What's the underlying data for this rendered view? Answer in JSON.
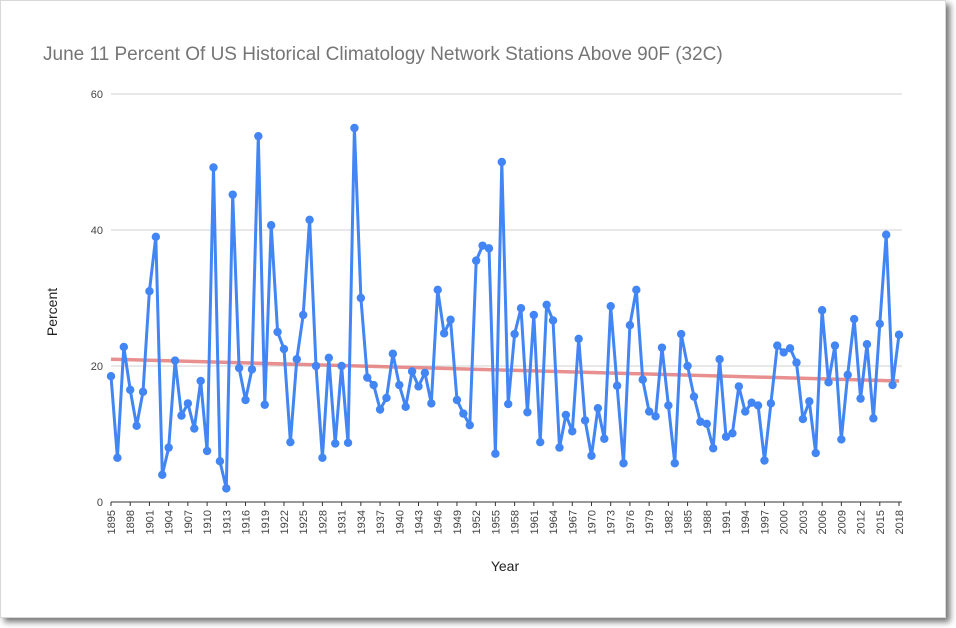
{
  "chart_data": {
    "type": "line",
    "title": "June 11 Percent Of US Historical Climatology Network Stations Above 90F (32C)",
    "xlabel": "Year",
    "ylabel": "Percent",
    "ylim": [
      0,
      60
    ],
    "yticks": [
      0,
      20,
      40,
      60
    ],
    "grid": true,
    "legend": "none",
    "x_tick_labels": [
      "1895",
      "1898",
      "1901",
      "1904",
      "1907",
      "1910",
      "1913",
      "1916",
      "1919",
      "1922",
      "1925",
      "1928",
      "1931",
      "1934",
      "1937",
      "1940",
      "1943",
      "1946",
      "1949",
      "1952",
      "1955",
      "1958",
      "1961",
      "1964",
      "1967",
      "1970",
      "1973",
      "1976",
      "1979",
      "1982",
      "1985",
      "1988",
      "1991",
      "1994",
      "1997",
      "2000",
      "2003",
      "2006",
      "2009",
      "2012",
      "2015",
      "2018"
    ],
    "x_start": 1895,
    "x_end": 2018,
    "series": [
      {
        "color": "#4285f4",
        "values": [
          18.5,
          6.5,
          22.8,
          16.5,
          11.2,
          16.2,
          31,
          39,
          4,
          8,
          20.8,
          12.7,
          14.5,
          10.8,
          17.8,
          7.5,
          49.2,
          6,
          2,
          45.2,
          19.7,
          15,
          19.5,
          53.8,
          14.3,
          40.7,
          25,
          22.5,
          8.8,
          21,
          27.5,
          41.5,
          20,
          6.5,
          21.2,
          8.6,
          20,
          8.7,
          55,
          30,
          18.3,
          17.2,
          13.6,
          15.3,
          21.8,
          17.2,
          14,
          19.2,
          17,
          19,
          14.5,
          31.2,
          24.8,
          26.8,
          15,
          13,
          11.3,
          35.5,
          37.7,
          37.3,
          7.1,
          50,
          14.4,
          24.7,
          28.5,
          13.2,
          27.5,
          8.8,
          29,
          26.7,
          8,
          12.8,
          10.4,
          24,
          12,
          6.8,
          13.8,
          9.3,
          28.8,
          17.1,
          5.7,
          26,
          31.2,
          18,
          13.3,
          12.6,
          22.7,
          14.2,
          5.7,
          24.7,
          20,
          15.5,
          11.8,
          11.5,
          7.9,
          21,
          9.6,
          10.1,
          17,
          13.3,
          14.6,
          14.2,
          6.1,
          14.5,
          23,
          22,
          22.6,
          20.5,
          12.2,
          14.8,
          7.2,
          28.2,
          17.6,
          23,
          9.2,
          18.7,
          26.9,
          15.2,
          23.2,
          12.3,
          26.2,
          39.3,
          17.2,
          24.6
        ]
      },
      {
        "name": "Trendline",
        "color": "#e47c7c",
        "values_endpoints": [
          21,
          17.8
        ]
      }
    ]
  }
}
